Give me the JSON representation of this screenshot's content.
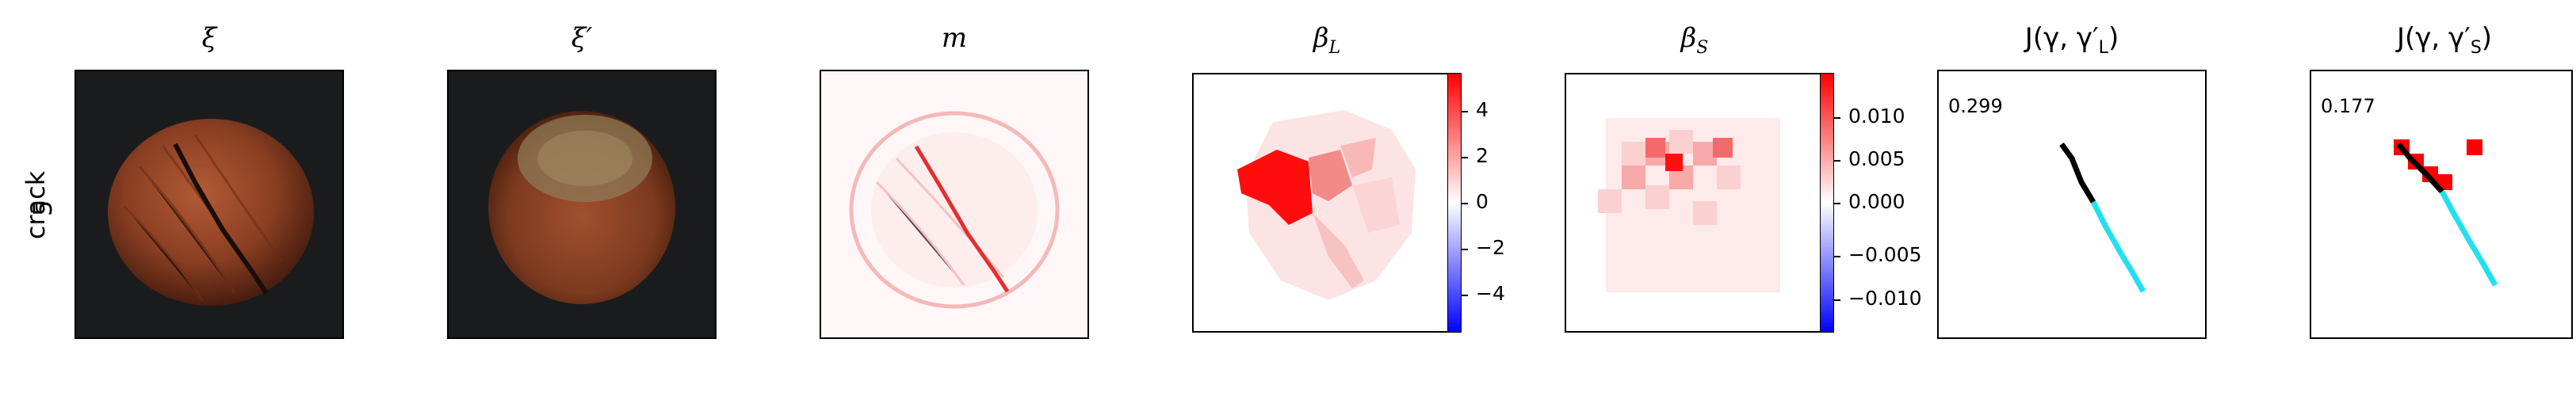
{
  "row_label": {
    "line1": "crack",
    "line2": "5"
  },
  "panels": [
    {
      "title": "ξ"
    },
    {
      "title": "ξ′"
    },
    {
      "title": "m"
    },
    {
      "title": "β",
      "sub": "L"
    },
    {
      "title": "β",
      "sub": "S"
    },
    {
      "title_prefix": "J(γ, γ′",
      "sub": "L",
      "title_suffix": ")",
      "score": "0.299"
    },
    {
      "title_prefix": "J(γ, γ′",
      "sub": "S",
      "title_suffix": ")",
      "score": "0.177"
    }
  ],
  "colorbar_L": {
    "ticks": [
      "4",
      "2",
      "0",
      "−2",
      "−4"
    ],
    "max_color": "#ff0000",
    "min_color": "#0000ff"
  },
  "colorbar_S": {
    "ticks": [
      "0.010",
      "0.005",
      "0.000",
      "−0.005",
      "−0.010"
    ],
    "max_color": "#ff0000",
    "min_color": "#0000ff"
  },
  "colors": {
    "crack_line": "#000000",
    "mask_line": "#00e5ff",
    "block": "#ff0000"
  }
}
